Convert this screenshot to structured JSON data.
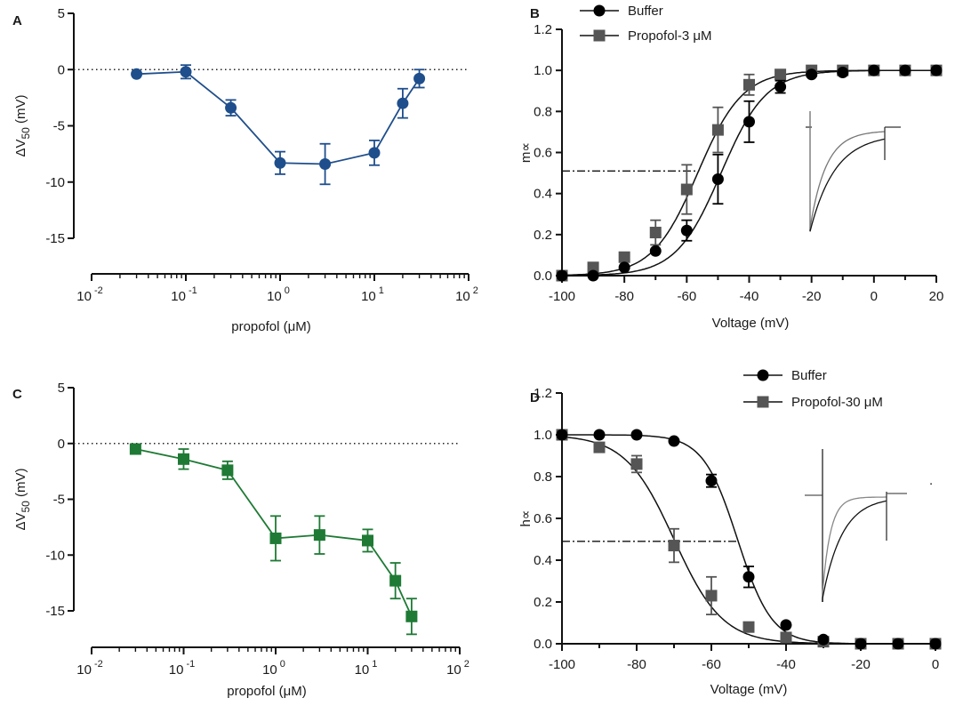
{
  "figure": {
    "dot_mark": "."
  },
  "chart_data": [
    {
      "panel": "A",
      "type": "line",
      "xscale": "log",
      "xlim": [
        0.01,
        100
      ],
      "ylim": [
        -15,
        5
      ],
      "xlabel": "propofol (μM)",
      "ylabel": "ΔV50 (mV)",
      "yticks": [
        "5",
        "0",
        "-5",
        "-10",
        "-15"
      ],
      "xticks": [
        {
          "base": "10",
          "exp": "-2"
        },
        {
          "base": "10",
          "exp": "-1"
        },
        {
          "base": "10",
          "exp": "0"
        },
        {
          "base": "10",
          "exp": "1"
        },
        {
          "base": "10",
          "exp": "2"
        }
      ],
      "reference_line_y": 0,
      "color": "#1f4e8c",
      "marker": "circle",
      "series": [
        {
          "name": "ΔV50",
          "x": [
            0.03,
            0.1,
            0.3,
            1,
            3,
            10,
            20,
            30
          ],
          "y": [
            -0.4,
            -0.2,
            -3.4,
            -8.3,
            -8.4,
            -7.4,
            -3.0,
            -0.8
          ],
          "err": [
            0,
            0.6,
            0.7,
            1.0,
            1.8,
            1.1,
            1.3,
            0.8
          ]
        }
      ]
    },
    {
      "panel": "B",
      "type": "scatter",
      "xlim": [
        -100,
        20
      ],
      "ylim": [
        0,
        1.2
      ],
      "xlabel": "Voltage (mV)",
      "ylabel": "m∝",
      "xticks": [
        "-100",
        "-80",
        "-60",
        "-40",
        "-20",
        "0",
        "20"
      ],
      "yticks": [
        "0.0",
        "0.2",
        "0.4",
        "0.6",
        "0.8",
        "1.0",
        "1.2"
      ],
      "half_line_y": 0.51,
      "legend": [
        "Buffer",
        "Propofol-3 μM"
      ],
      "series": [
        {
          "name": "Buffer",
          "marker": "circle",
          "color": "#000000",
          "x": [
            -100,
            -90,
            -80,
            -70,
            -60,
            -50,
            -40,
            -30,
            -20,
            -10,
            0,
            10,
            20
          ],
          "y": [
            0.0,
            0.0,
            0.04,
            0.12,
            0.22,
            0.47,
            0.75,
            0.92,
            0.98,
            0.99,
            1.0,
            1.0,
            1.0
          ],
          "err": [
            0,
            0,
            0,
            0,
            0.05,
            0.12,
            0.1,
            0.03,
            0.01,
            0,
            0,
            0,
            0
          ],
          "fit": {
            "v_half": -49,
            "k": 7.2
          }
        },
        {
          "name": "Propofol-3 μM",
          "marker": "square",
          "color": "#555555",
          "x": [
            -100,
            -90,
            -80,
            -70,
            -60,
            -50,
            -40,
            -30,
            -20,
            -10,
            0,
            10,
            20
          ],
          "y": [
            0.0,
            0.04,
            0.09,
            0.21,
            0.42,
            0.71,
            0.93,
            0.98,
            1.0,
            1.0,
            1.0,
            1.0,
            1.0
          ],
          "err": [
            0,
            0,
            0.02,
            0.06,
            0.12,
            0.11,
            0.05,
            0.01,
            0,
            0,
            0,
            0,
            0
          ],
          "fit": {
            "v_half": -56.5,
            "k": 7.2
          }
        }
      ]
    },
    {
      "panel": "C",
      "type": "line",
      "xscale": "log",
      "xlim": [
        0.01,
        100
      ],
      "ylim": [
        -15,
        5
      ],
      "xlabel": "propofol (μM)",
      "ylabel": "ΔV50 (mV)",
      "yticks": [
        "5",
        "0",
        "-5",
        "-10",
        "-15"
      ],
      "xticks": [
        {
          "base": "10",
          "exp": "-2"
        },
        {
          "base": "10",
          "exp": "-1"
        },
        {
          "base": "10",
          "exp": "0"
        },
        {
          "base": "10",
          "exp": "1"
        },
        {
          "base": "10",
          "exp": "2"
        }
      ],
      "reference_line_y": 0,
      "color": "#1e7a34",
      "marker": "square",
      "series": [
        {
          "name": "ΔV50",
          "x": [
            0.03,
            0.1,
            0.3,
            1,
            3,
            10,
            20,
            30
          ],
          "y": [
            -0.5,
            -1.4,
            -2.4,
            -8.5,
            -8.2,
            -8.7,
            -12.3,
            -15.5
          ],
          "err": [
            0,
            0.9,
            0.8,
            2.0,
            1.7,
            1.0,
            1.6,
            1.6
          ]
        }
      ]
    },
    {
      "panel": "D",
      "type": "scatter",
      "xlim": [
        -100,
        0
      ],
      "ylim": [
        0,
        1.2
      ],
      "xlabel": "Voltage (mV)",
      "ylabel": "h∝",
      "xticks": [
        "-100",
        "-80",
        "-60",
        "-40",
        "-20",
        "0"
      ],
      "yticks": [
        "0.0",
        "0.2",
        "0.4",
        "0.6",
        "0.8",
        "1.0",
        "1.2"
      ],
      "half_line_y": 0.49,
      "legend": [
        "Buffer",
        "Propofol-30 μM"
      ],
      "series": [
        {
          "name": "Buffer",
          "marker": "circle",
          "color": "#000000",
          "x": [
            -100,
            -90,
            -80,
            -70,
            -60,
            -50,
            -40,
            -30,
            -20,
            -10,
            0
          ],
          "y": [
            1.0,
            1.0,
            1.0,
            0.97,
            0.78,
            0.32,
            0.09,
            0.02,
            0.0,
            0.0,
            0.0
          ],
          "err": [
            0,
            0,
            0,
            0,
            0.03,
            0.05,
            0,
            0,
            0,
            0,
            0
          ],
          "fit": {
            "v_half": -53,
            "k": -4.6
          }
        },
        {
          "name": "Propofol-30 μM",
          "marker": "square",
          "color": "#555555",
          "x": [
            -100,
            -90,
            -80,
            -70,
            -60,
            -50,
            -40,
            -30,
            -20,
            -10,
            0
          ],
          "y": [
            1.0,
            0.94,
            0.86,
            0.47,
            0.23,
            0.08,
            0.03,
            0.01,
            0.0,
            0.0,
            0.0
          ],
          "err": [
            0,
            0,
            0.04,
            0.08,
            0.09,
            0,
            0,
            0,
            0,
            0,
            0
          ],
          "fit": {
            "v_half": -70,
            "k": -6.5
          }
        }
      ]
    }
  ]
}
